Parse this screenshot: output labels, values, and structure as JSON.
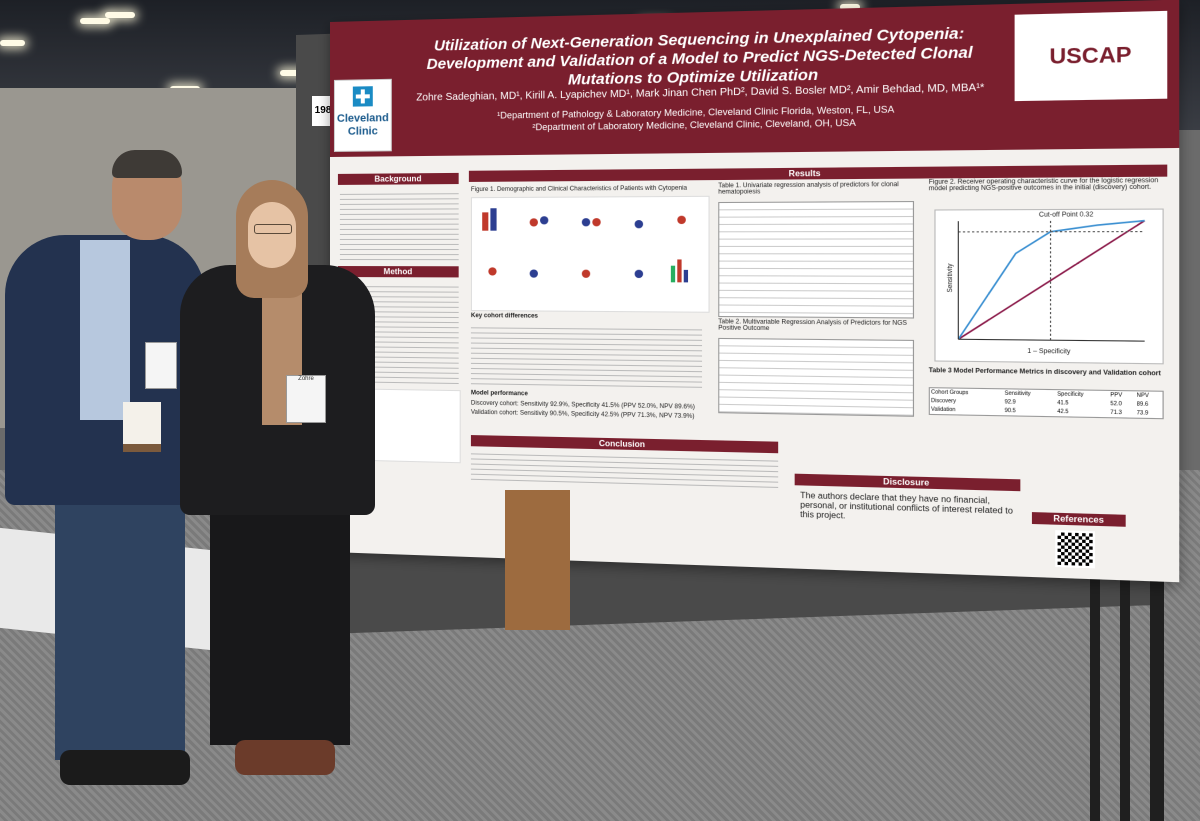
{
  "poster": {
    "board_number": "198",
    "title": "Utilization of Next-Generation Sequencing in Unexplained Cytopenia: Development and Validation of a Model to Predict NGS-Detected Clonal Mutations to Optimize Utilization",
    "authors": "Zohre Sadeghian, MD¹, Kirill A. Lyapichev MD¹, Mark Jinan Chen PhD², David S. Bosler MD², Amir Behdad, MD, MBA¹*",
    "affiliation_1": "¹Department of Pathology & Laboratory Medicine, Cleveland Clinic Florida, Weston, FL, USA",
    "affiliation_2": "²Department of Laboratory Medicine, Cleveland Clinic, Cleveland, OH, USA",
    "logo_left": "Cleveland Clinic",
    "logo_right": "USCAP",
    "sections": {
      "background": "Background",
      "method": "Method",
      "results": "Results",
      "conclusion": "Conclusion",
      "disclosure": "Disclosure",
      "references": "References"
    },
    "figure1_caption": "Figure 1. Demographic and Clinical Characteristics of Patients with Cytopenia",
    "table1_caption": "Table 1. Univariate regression analysis of predictors for clonal hematopoiesis",
    "table2_caption": "Table 2. Multivariable Regression Analysis of Predictors for NGS Positive Outcome",
    "table3_caption": "Table 3 Model Performance Metrics in discovery and Validation cohort",
    "figure2_caption": "Figure 2. Receiver operating characteristic curve for the logistic regression model predicting NGS-positive outcomes in the initial (discovery) cohort.",
    "roc_cutoff_label": "Cut-off Point 0.32",
    "roc_xlabel": "1 – Specificity",
    "roc_ylabel": "Sensitivity",
    "key_differences_title": "Key cohort differences",
    "model_performance_title": "Model performance",
    "discovery_cohort": "Discovery cohort: Sensitivity 92.9%, Specificity 41.5% (PPV 52.0%, NPV 89.6%)",
    "validation_cohort": "Validation cohort: Sensitivity 90.5%, Specificity 42.5% (PPV 71.3%, NPV 73.9%)",
    "disclosure_text": "The authors declare that they have no financial, personal, or institutional conflicts of interest related to this project.",
    "table3": {
      "headers": [
        "Cohort Groups",
        "Sensitivity",
        "Specificity",
        "PPV",
        "NPV"
      ],
      "rows": [
        [
          "Discovery",
          "92.9",
          "41.5",
          "52.0",
          "89.6"
        ],
        [
          "Validation",
          "90.5",
          "42.5",
          "71.3",
          "73.9"
        ]
      ]
    }
  },
  "badges": {
    "man": "",
    "woman": "Zohre"
  },
  "colors": {
    "poster_maroon": "#7a1f2e",
    "roc_curve_blue": "#3a8fd1",
    "roc_diagonal": "#8b1a4a"
  }
}
